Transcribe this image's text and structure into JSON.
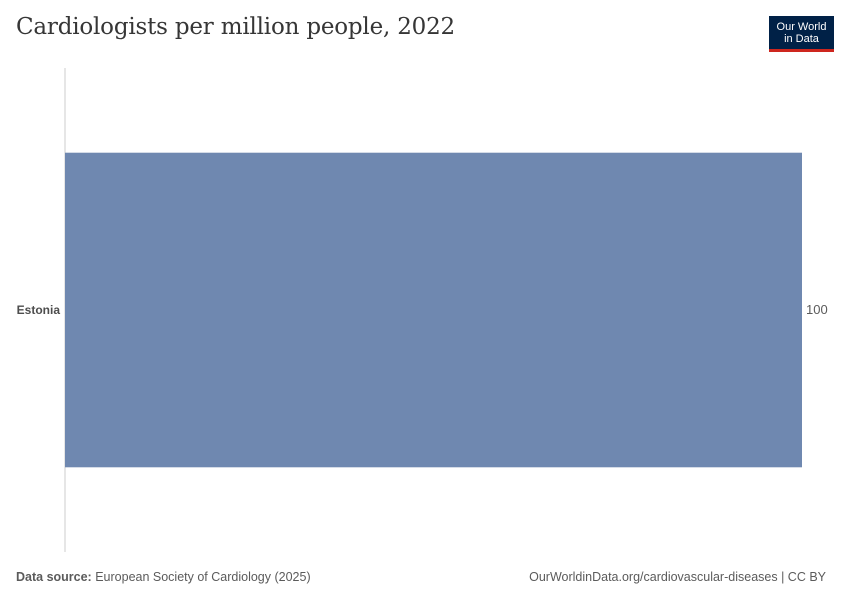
{
  "title": "Cardiologists per million people, 2022",
  "logo": {
    "line1": "Our World",
    "line2": "in Data"
  },
  "chart_data": {
    "type": "bar",
    "orientation": "horizontal",
    "categories": [
      "Estonia"
    ],
    "values": [
      100
    ],
    "value_labels": [
      "100"
    ],
    "xlim": [
      0,
      100
    ],
    "bar_color": "#6f88b0",
    "title": "Cardiologists per million people, 2022",
    "xlabel": "",
    "ylabel": ""
  },
  "footer": {
    "source_label": "Data source:",
    "source_text": " European Society of Cardiology (2025)",
    "url_text": "OurWorldinData.org/cardiovascular-diseases | CC BY"
  },
  "colors": {
    "accent": "#002147",
    "logo_underline": "#ce261e"
  }
}
